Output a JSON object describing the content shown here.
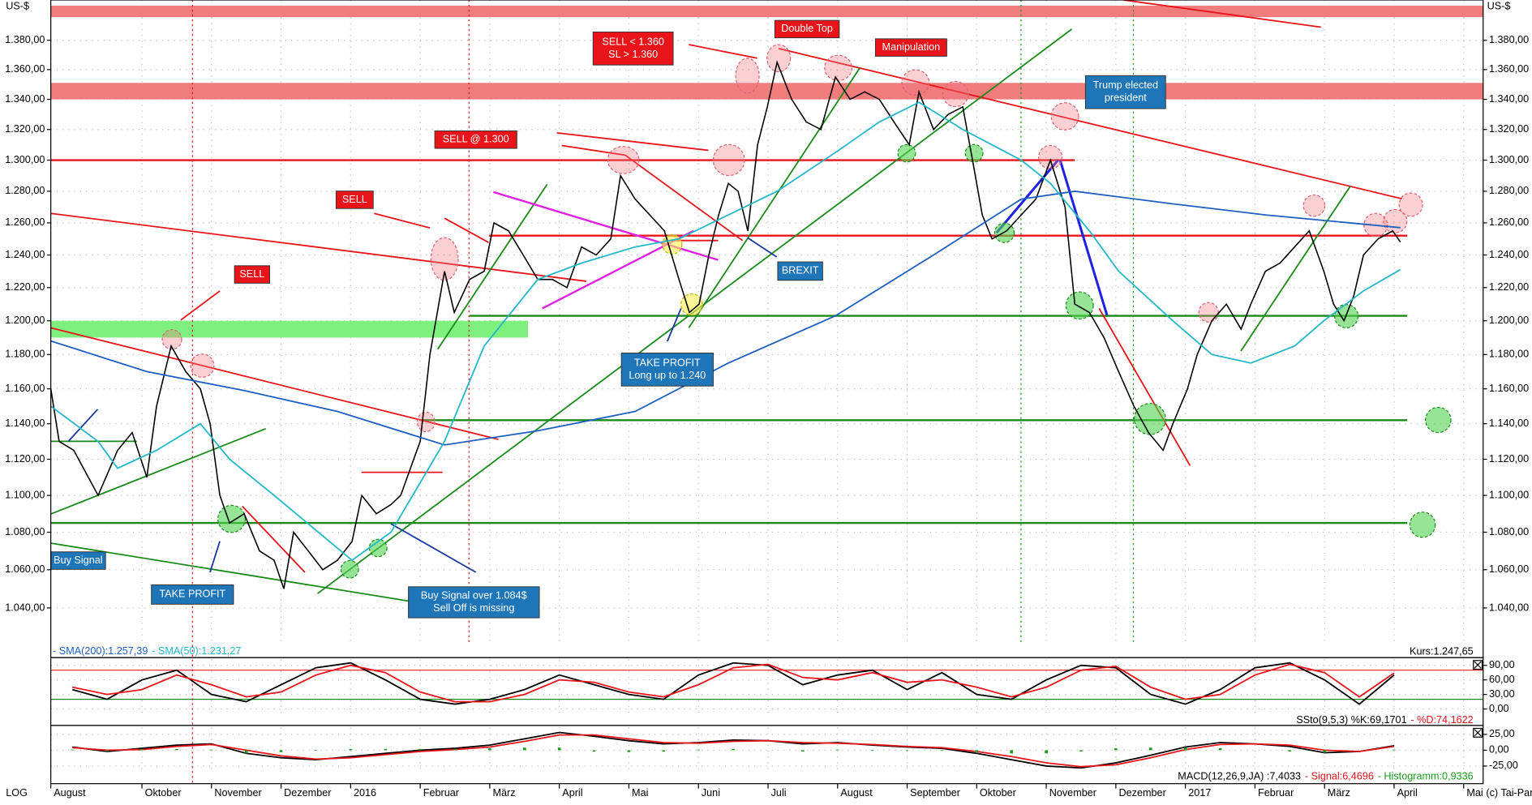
{
  "chart_data": [
    {
      "type": "line",
      "y_label": "US-$",
      "scale_label": "LOG",
      "copyright": "(c) Tai-Pan",
      "log_scale": true,
      "grid": true,
      "xlim": [
        0.69,
        21.28
      ],
      "xticks": [
        {
          "value": 0.69,
          "label": "August"
        },
        {
          "value": 2,
          "label": "Oktober"
        },
        {
          "value": 3,
          "label": "November"
        },
        {
          "value": 4,
          "label": "Dezember"
        },
        {
          "value": 5,
          "label": "2016"
        },
        {
          "value": 6,
          "label": "Februar"
        },
        {
          "value": 7,
          "label": "März"
        },
        {
          "value": 8,
          "label": "April"
        },
        {
          "value": 9,
          "label": "Mai"
        },
        {
          "value": 10,
          "label": "Juni"
        },
        {
          "value": 11,
          "label": "Juli"
        },
        {
          "value": 12,
          "label": "August"
        },
        {
          "value": 13,
          "label": "September"
        },
        {
          "value": 14,
          "label": "Oktober"
        },
        {
          "value": 15,
          "label": "November"
        },
        {
          "value": 16,
          "label": "Dezember"
        },
        {
          "value": 17,
          "label": "2017"
        },
        {
          "value": 18,
          "label": "Februar"
        },
        {
          "value": 19,
          "label": "März"
        },
        {
          "value": 20,
          "label": "April"
        },
        {
          "value": 21,
          "label": "Mai"
        }
      ],
      "ylim": [
        1.021,
        1.408
      ],
      "yticks": [
        {
          "value": 1.04,
          "label": "1.040,00"
        },
        {
          "value": 1.06,
          "label": "1.060,00"
        },
        {
          "value": 1.08,
          "label": "1.080,00"
        },
        {
          "value": 1.1,
          "label": "1.100,00"
        },
        {
          "value": 1.12,
          "label": "1.120,00"
        },
        {
          "value": 1.14,
          "label": "1.140,00"
        },
        {
          "value": 1.16,
          "label": "1.160,00"
        },
        {
          "value": 1.18,
          "label": "1.180,00"
        },
        {
          "value": 1.2,
          "label": "1.200,00"
        },
        {
          "value": 1.22,
          "label": "1.220,00"
        },
        {
          "value": 1.24,
          "label": "1.240,00"
        },
        {
          "value": 1.26,
          "label": "1.260,00"
        },
        {
          "value": 1.28,
          "label": "1.280,00"
        },
        {
          "value": 1.3,
          "label": "1.300,00"
        },
        {
          "value": 1.32,
          "label": "1.320,00"
        },
        {
          "value": 1.34,
          "label": "1.340,00"
        },
        {
          "value": 1.36,
          "label": "1.360,00"
        },
        {
          "value": 1.38,
          "label": "1.380,00"
        }
      ],
      "series": [
        {
          "name": "Kurs:1.247,65",
          "color": "#000000",
          "x": [
            0.69,
            0.81,
            1.02,
            1.37,
            1.65,
            1.86,
            2.07,
            2.21,
            2.42,
            2.63,
            2.84,
            2.98,
            3.12,
            3.26,
            3.47,
            3.69,
            3.9,
            4.04,
            4.18,
            4.39,
            4.6,
            4.81,
            5.02,
            5.16,
            5.37,
            5.58,
            5.72,
            5.86,
            6.0,
            6.14,
            6.35,
            6.49,
            6.71,
            6.92,
            7.06,
            7.27,
            7.48,
            7.69,
            7.9,
            8.11,
            8.32,
            8.53,
            8.74,
            8.88,
            9.09,
            9.3,
            9.51,
            9.72,
            9.87,
            10.01,
            10.15,
            10.29,
            10.43,
            10.57,
            10.71,
            10.85,
            10.99,
            11.13,
            11.34,
            11.55,
            11.76,
            11.97,
            12.18,
            12.39,
            12.6,
            12.81,
            13.03,
            13.17,
            13.38,
            13.59,
            13.8,
            13.94,
            14.08,
            14.22,
            14.43,
            14.64,
            14.85,
            15.06,
            15.27,
            15.41,
            15.62,
            15.83,
            16.04,
            16.26,
            16.47,
            16.68,
            16.82,
            17.03,
            17.17,
            17.38,
            17.59,
            17.8,
            17.94,
            18.15,
            18.36,
            18.57,
            18.78,
            18.99,
            19.13,
            19.28,
            19.42,
            19.56,
            19.77,
            19.98,
            20.09
          ],
          "values": [
            1.16,
            1.13,
            1.125,
            1.1,
            1.125,
            1.135,
            1.11,
            1.15,
            1.185,
            1.17,
            1.16,
            1.14,
            1.1,
            1.085,
            1.09,
            1.07,
            1.065,
            1.05,
            1.08,
            1.07,
            1.06,
            1.065,
            1.075,
            1.1,
            1.09,
            1.095,
            1.1,
            1.115,
            1.13,
            1.18,
            1.23,
            1.205,
            1.225,
            1.23,
            1.26,
            1.255,
            1.24,
            1.225,
            1.225,
            1.22,
            1.245,
            1.24,
            1.25,
            1.29,
            1.275,
            1.265,
            1.255,
            1.225,
            1.205,
            1.21,
            1.24,
            1.265,
            1.285,
            1.28,
            1.255,
            1.31,
            1.335,
            1.365,
            1.34,
            1.325,
            1.32,
            1.355,
            1.34,
            1.345,
            1.34,
            1.325,
            1.31,
            1.345,
            1.32,
            1.33,
            1.335,
            1.3,
            1.265,
            1.25,
            1.255,
            1.265,
            1.275,
            1.3,
            1.27,
            1.21,
            1.205,
            1.19,
            1.17,
            1.15,
            1.135,
            1.125,
            1.14,
            1.16,
            1.18,
            1.2,
            1.21,
            1.195,
            1.21,
            1.23,
            1.235,
            1.245,
            1.255,
            1.23,
            1.21,
            1.2,
            1.215,
            1.24,
            1.25,
            1.255,
            1.248
          ]
        },
        {
          "name": "- SMA(200):1.257,39",
          "color": "#1f5fbf",
          "x": [
            0.69,
            2.07,
            3.47,
            4.81,
            6.35,
            7.69,
            9.09,
            10.43,
            11.97,
            13.38,
            14.64,
            15.41,
            16.82,
            18.15,
            20.09
          ],
          "values": [
            1.188,
            1.17,
            1.159,
            1.147,
            1.128,
            1.136,
            1.147,
            1.175,
            1.203,
            1.24,
            1.275,
            1.28,
            1.272,
            1.265,
            1.257
          ]
        },
        {
          "name": "- SMA(50):1.231,27",
          "color": "#22b8c8",
          "x": [
            0.69,
            1.37,
            1.65,
            2.21,
            2.84,
            3.26,
            3.9,
            4.6,
            5.02,
            5.58,
            6.35,
            6.92,
            7.69,
            8.32,
            9.09,
            9.72,
            10.43,
            11.13,
            11.97,
            12.6,
            13.17,
            13.8,
            14.64,
            15.06,
            15.62,
            16.04,
            16.82,
            17.38,
            17.94,
            18.57,
            18.99,
            19.56,
            20.09
          ],
          "values": [
            1.15,
            1.13,
            1.115,
            1.125,
            1.14,
            1.12,
            1.1,
            1.078,
            1.065,
            1.08,
            1.13,
            1.185,
            1.225,
            1.235,
            1.245,
            1.25,
            1.265,
            1.28,
            1.305,
            1.325,
            1.338,
            1.32,
            1.3,
            1.285,
            1.255,
            1.23,
            1.2,
            1.18,
            1.175,
            1.185,
            1.2,
            1.218,
            1.231
          ]
        }
      ],
      "bands": [
        {
          "from_value": 1.396,
          "to_value": 1.404,
          "from": 0.69,
          "to": 21.28,
          "color": "#f07c7c"
        },
        {
          "from_value": 1.34,
          "to_value": 1.351,
          "from": 0.69,
          "to": 21.28,
          "color": "#f07c7c"
        },
        {
          "from_value": 1.19,
          "to_value": 1.2,
          "from": 0.69,
          "to": 7.55,
          "color": "#7ef07e"
        }
      ],
      "levels": [
        {
          "value": 1.3,
          "from": 0.69,
          "to": 15.41,
          "color": "#e8141a"
        },
        {
          "value": 1.252,
          "from": 6.99,
          "to": 20.19,
          "color": "#e8141a"
        },
        {
          "value": 1.203,
          "from": 6.71,
          "to": 20.19,
          "color": "#1a8a1a"
        },
        {
          "value": 1.142,
          "from": 6.0,
          "to": 20.19,
          "color": "#1a8a1a"
        },
        {
          "value": 1.085,
          "from": 0.69,
          "to": 20.19,
          "color": "#1a8a1a"
        }
      ],
      "annotations": [
        {
          "text": [
            "SELL < 1.360",
            "SL > 1.360"
          ],
          "color": "#e8141a"
        },
        {
          "text": [
            "Double Top"
          ],
          "color": "#e8141a"
        },
        {
          "text": [
            "Manipulation"
          ],
          "color": "#e8141a"
        },
        {
          "text": [
            "SELL @ 1.300"
          ],
          "color": "#e8141a"
        },
        {
          "text": [
            "SELL"
          ],
          "color": "#e8141a"
        },
        {
          "text": [
            "SELL"
          ],
          "color": "#e8141a"
        },
        {
          "text": [
            "BREXIT"
          ],
          "color": "#1e76b8"
        },
        {
          "text": [
            "TAKE PROFIT",
            "Long up to 1.240"
          ],
          "color": "#1e76b8"
        },
        {
          "text": [
            "Trump elected",
            "president"
          ],
          "color": "#1e76b8"
        },
        {
          "text": [
            "Buy Signal"
          ],
          "color": "#1e76b8"
        },
        {
          "text": [
            "TAKE PROFIT"
          ],
          "color": "#1e76b8"
        },
        {
          "text": [
            "Buy Signal over 1.084$",
            "Sell Off is missing"
          ],
          "color": "#1e76b8"
        }
      ]
    },
    {
      "type": "line",
      "grid": true,
      "ylim": [
        -12,
        102
      ],
      "yticks": [
        {
          "value": 0,
          "label": "0,00"
        },
        {
          "value": 30,
          "label": "30,00"
        },
        {
          "value": 60,
          "label": "60,00"
        },
        {
          "value": 90,
          "label": "90,00"
        }
      ],
      "levels": [
        {
          "value": 80,
          "color": "#e8141a"
        },
        {
          "value": 20,
          "color": "#1a8a1a"
        }
      ],
      "series": [
        {
          "name": "SSto(9,5,3) %K:69,1701",
          "color": "#000000",
          "x": [
            1,
            1.5,
            2,
            2.5,
            3,
            3.5,
            4,
            4.5,
            5,
            5.5,
            6,
            6.5,
            7,
            7.5,
            8,
            8.5,
            9,
            9.5,
            10,
            10.5,
            11,
            11.5,
            12,
            12.5,
            13,
            13.5,
            14,
            14.5,
            15,
            15.5,
            16,
            16.5,
            17,
            17.5,
            18,
            18.5,
            19,
            19.5,
            20
          ],
          "values": [
            40,
            20,
            60,
            80,
            30,
            15,
            50,
            85,
            95,
            60,
            20,
            10,
            20,
            40,
            70,
            50,
            30,
            20,
            70,
            95,
            90,
            50,
            70,
            80,
            40,
            75,
            30,
            20,
            60,
            90,
            85,
            30,
            10,
            40,
            85,
            95,
            60,
            10,
            70
          ]
        },
        {
          "name": "- %D:74,1622",
          "color": "#e8141a",
          "x": [
            1,
            1.5,
            2,
            2.5,
            3,
            3.5,
            4,
            4.5,
            5,
            5.5,
            6,
            6.5,
            7,
            7.5,
            8,
            8.5,
            9,
            9.5,
            10,
            10.5,
            11,
            11.5,
            12,
            12.5,
            13,
            13.5,
            14,
            14.5,
            15,
            15.5,
            16,
            16.5,
            17,
            17.5,
            18,
            18.5,
            19,
            19.5,
            20
          ],
          "values": [
            45,
            30,
            40,
            70,
            50,
            25,
            35,
            70,
            90,
            75,
            35,
            15,
            15,
            30,
            60,
            55,
            35,
            25,
            50,
            85,
            92,
            65,
            60,
            75,
            55,
            60,
            45,
            25,
            45,
            80,
            88,
            45,
            20,
            30,
            70,
            92,
            75,
            25,
            74
          ]
        }
      ]
    },
    {
      "type": "line",
      "grid": true,
      "ylim": [
        -36,
        36
      ],
      "yticks": [
        {
          "value": -25,
          "label": "-25,00"
        },
        {
          "value": 0,
          "label": "0,00"
        },
        {
          "value": 25,
          "label": "25,00"
        }
      ],
      "series": [
        {
          "name": "MACD(12,26,9,JA) :7,4033",
          "color": "#000000",
          "x": [
            1,
            1.5,
            2,
            2.5,
            3,
            3.5,
            4,
            4.5,
            5,
            5.5,
            6,
            6.5,
            7,
            7.5,
            8,
            8.5,
            9,
            9.5,
            10,
            10.5,
            11,
            11.5,
            12,
            12.5,
            13,
            13.5,
            14,
            14.5,
            15,
            15.5,
            16,
            16.5,
            17,
            17.5,
            18,
            18.5,
            19,
            19.5,
            20
          ],
          "values": [
            5,
            -2,
            3,
            8,
            10,
            -5,
            -12,
            -15,
            -10,
            -5,
            0,
            3,
            8,
            18,
            28,
            22,
            15,
            10,
            12,
            16,
            15,
            10,
            12,
            8,
            5,
            3,
            -5,
            -15,
            -25,
            -28,
            -20,
            -8,
            5,
            12,
            10,
            6,
            -4,
            -2,
            7
          ]
        },
        {
          "name": "- Signal:6,4696",
          "color": "#e8141a",
          "x": [
            1,
            1.5,
            2,
            2.5,
            3,
            3.5,
            4,
            4.5,
            5,
            5.5,
            6,
            6.5,
            7,
            7.5,
            8,
            8.5,
            9,
            9.5,
            10,
            10.5,
            11,
            11.5,
            12,
            12.5,
            13,
            13.5,
            14,
            14.5,
            15,
            15.5,
            16,
            16.5,
            17,
            17.5,
            18,
            18.5,
            19,
            19.5,
            20
          ],
          "values": [
            4,
            0,
            1,
            6,
            9,
            0,
            -9,
            -14,
            -12,
            -7,
            -2,
            1,
            5,
            14,
            24,
            24,
            18,
            12,
            11,
            14,
            15,
            12,
            11,
            9,
            6,
            4,
            -2,
            -10,
            -20,
            -26,
            -23,
            -12,
            1,
            9,
            10,
            8,
            0,
            -2,
            6
          ]
        },
        {
          "name": "- Histogramm:0,9336",
          "color": "#1a9a1a",
          "style": "bar",
          "x": [
            1,
            1.5,
            2,
            2.5,
            3,
            3.5,
            4,
            4.5,
            5,
            5.5,
            6,
            6.5,
            7,
            7.5,
            8,
            8.5,
            9,
            9.5,
            10,
            10.5,
            11,
            11.5,
            12,
            12.5,
            13,
            13.5,
            14,
            14.5,
            15,
            15.5,
            16,
            16.5,
            17,
            17.5,
            18,
            18.5,
            19,
            19.5,
            20
          ],
          "values": [
            1,
            -2,
            2,
            2,
            1,
            -5,
            -3,
            -1,
            2,
            2,
            2,
            2,
            3,
            4,
            4,
            -2,
            -3,
            -2,
            1,
            2,
            0,
            -2,
            1,
            -1,
            -1,
            -1,
            -3,
            -5,
            -5,
            -2,
            3,
            4,
            4,
            3,
            0,
            -2,
            -4,
            0,
            1
          ]
        }
      ]
    }
  ]
}
